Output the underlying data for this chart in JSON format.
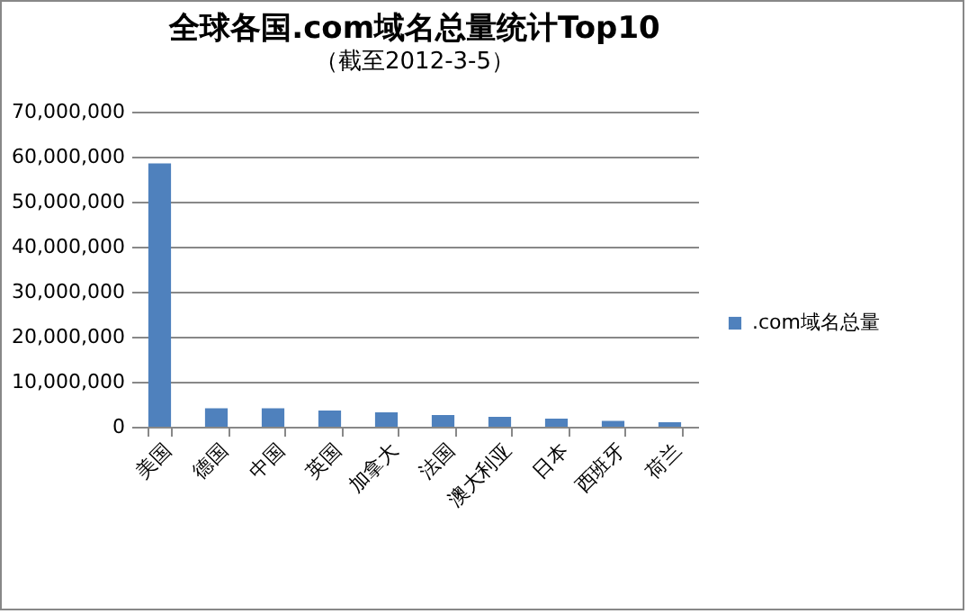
{
  "chart_data": {
    "type": "bar",
    "title": "全球各国.com域名总量统计Top10",
    "subtitle": "（截至2012-3-5）",
    "categories": [
      "美国",
      "德国",
      "中国",
      "英国",
      "加拿大",
      "法国",
      "澳大利亚",
      "日本",
      "西班牙",
      "荷兰"
    ],
    "series": [
      {
        "name": ".com域名总量",
        "color": "#4f81bd",
        "values": [
          58500000,
          4100000,
          4100000,
          3600000,
          3200000,
          2600000,
          2200000,
          1800000,
          1300000,
          1000000
        ]
      }
    ],
    "ylim": [
      0,
      70000000
    ],
    "yticks": [
      0,
      {
        "value": 10000000,
        "label": "10,000,000"
      },
      {
        "value": 20000000,
        "label": "20,000,000"
      },
      {
        "value": 30000000,
        "label": "30,000,000"
      },
      {
        "value": 40000000,
        "label": "40,000,000"
      },
      {
        "value": 50000000,
        "label": "50,000,000"
      },
      {
        "value": 60000000,
        "label": "60,000,000"
      },
      {
        "value": 70000000,
        "label": "70,000,000"
      }
    ],
    "grid": "y",
    "legend": "right"
  }
}
